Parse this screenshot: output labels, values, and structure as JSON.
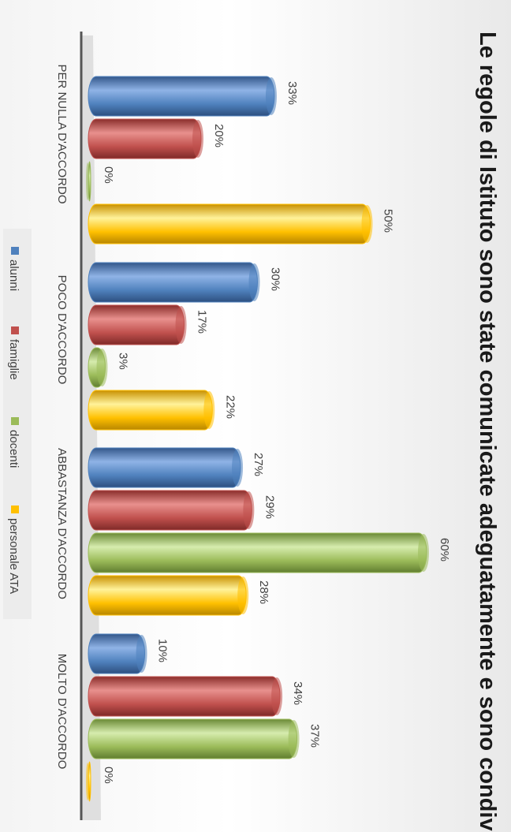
{
  "chart_data": {
    "type": "bar",
    "title": "Le regole di Istituto sono state comunicate adeguatamente e sono condivise",
    "categories": [
      "PER NULLA D'ACCORDO",
      "POCO D'ACCORDO",
      "ABBASTANZA  D'ACCORDO",
      "MOLTO D'ACCORDO"
    ],
    "series": [
      {
        "name": "alunni",
        "values": [
          33,
          30,
          27,
          10
        ],
        "labels": [
          "33%",
          "30%",
          "27%",
          "10%"
        ],
        "color": "#4f81bd"
      },
      {
        "name": "famiglie",
        "values": [
          20,
          17,
          29,
          34
        ],
        "labels": [
          "20%",
          "17%",
          "29%",
          "34%"
        ],
        "color": "#c0504d"
      },
      {
        "name": "docenti",
        "values": [
          0,
          3,
          60,
          37
        ],
        "labels": [
          "0%",
          "3%",
          "60%",
          "37%"
        ],
        "color": "#9bbb59"
      },
      {
        "name": "personale ATA",
        "values": [
          50,
          22,
          28,
          0
        ],
        "labels": [
          "50%",
          "22%",
          "28%",
          "0%"
        ],
        "color": "#ffc000"
      }
    ],
    "ylim": [
      0,
      60
    ],
    "orientation": "rotated-90-clockwise",
    "legend_position": "bottom",
    "grid": false
  }
}
